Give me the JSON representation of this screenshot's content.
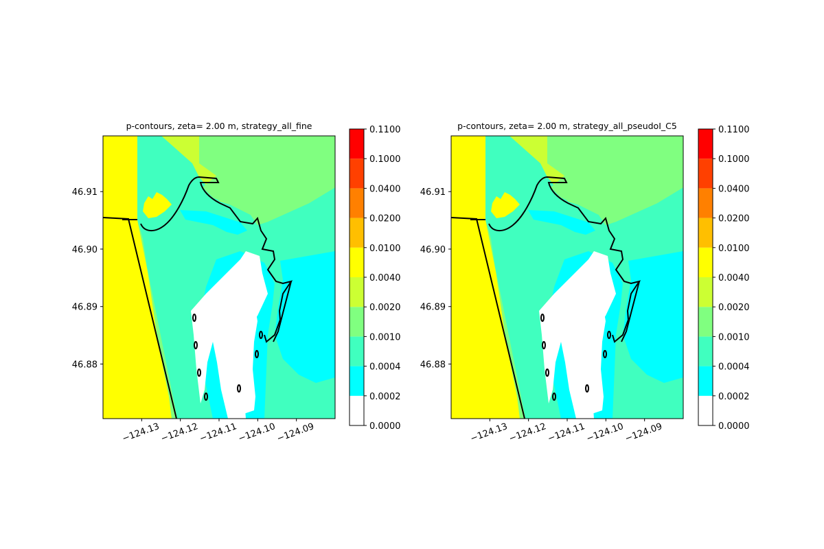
{
  "chart_data": [
    {
      "type": "heatmap",
      "title": "p-contours, zeta= 2.00 m, strategy_all_fine",
      "xlabel": "",
      "ylabel": "",
      "x_ticks": [
        "−124.13",
        "−124.12",
        "−124.11",
        "−124.10",
        "−124.09"
      ],
      "x_tick_values": [
        -124.13,
        -124.12,
        -124.11,
        -124.1,
        -124.09
      ],
      "y_ticks": [
        "46.88",
        "46.89",
        "46.90",
        "46.91"
      ],
      "y_tick_values": [
        46.88,
        46.89,
        46.9,
        46.91
      ],
      "xlim": [
        -124.14,
        -124.08
      ],
      "ylim": [
        46.8705,
        46.9197
      ],
      "colorbar": {
        "levels": [
          "0.0000",
          "0.0002",
          "0.0004",
          "0.0010",
          "0.0020",
          "0.0040",
          "0.0100",
          "0.0200",
          "0.0400",
          "0.1000",
          "0.1100"
        ],
        "colors": [
          "#ffffff",
          "#00ffff",
          "#40ffbf",
          "#80ff80",
          "#ccff33",
          "#ffff00",
          "#ffbf00",
          "#ff8000",
          "#ff4000",
          "#ff0000"
        ]
      },
      "regions": {
        "offshore": "0.0040-0.0100",
        "north_land": "0.0020-0.0040",
        "northeast_land": "0.0010-0.0020",
        "bay": "0.0004-0.0010",
        "channels": "0.0002-0.0004",
        "tidal_flats": "0.0000-0.0002"
      }
    },
    {
      "type": "heatmap",
      "title": "p-contours, zeta= 2.00 m, strategy_all_pseudoI_C5",
      "xlabel": "",
      "ylabel": "",
      "x_ticks": [
        "−124.13",
        "−124.12",
        "−124.11",
        "−124.10",
        "−124.09"
      ],
      "x_tick_values": [
        -124.13,
        -124.12,
        -124.11,
        -124.1,
        -124.09
      ],
      "y_ticks": [
        "46.88",
        "46.89",
        "46.90",
        "46.91"
      ],
      "y_tick_values": [
        46.88,
        46.89,
        46.9,
        46.91
      ],
      "xlim": [
        -124.14,
        -124.08
      ],
      "ylim": [
        46.8705,
        46.9197
      ],
      "colorbar": {
        "levels": [
          "0.0000",
          "0.0002",
          "0.0004",
          "0.0010",
          "0.0020",
          "0.0040",
          "0.0100",
          "0.0200",
          "0.0400",
          "0.1000",
          "0.1100"
        ],
        "colors": [
          "#ffffff",
          "#00ffff",
          "#40ffbf",
          "#80ff80",
          "#ccff33",
          "#ffff00",
          "#ffbf00",
          "#ff8000",
          "#ff4000",
          "#ff0000"
        ]
      },
      "regions": {
        "offshore": "0.0040-0.0100",
        "north_land": "0.0020-0.0040",
        "northeast_land": "0.0010-0.0020",
        "bay": "0.0004-0.0010",
        "channels": "0.0002-0.0004",
        "tidal_flats": "0.0000-0.0002"
      }
    }
  ]
}
